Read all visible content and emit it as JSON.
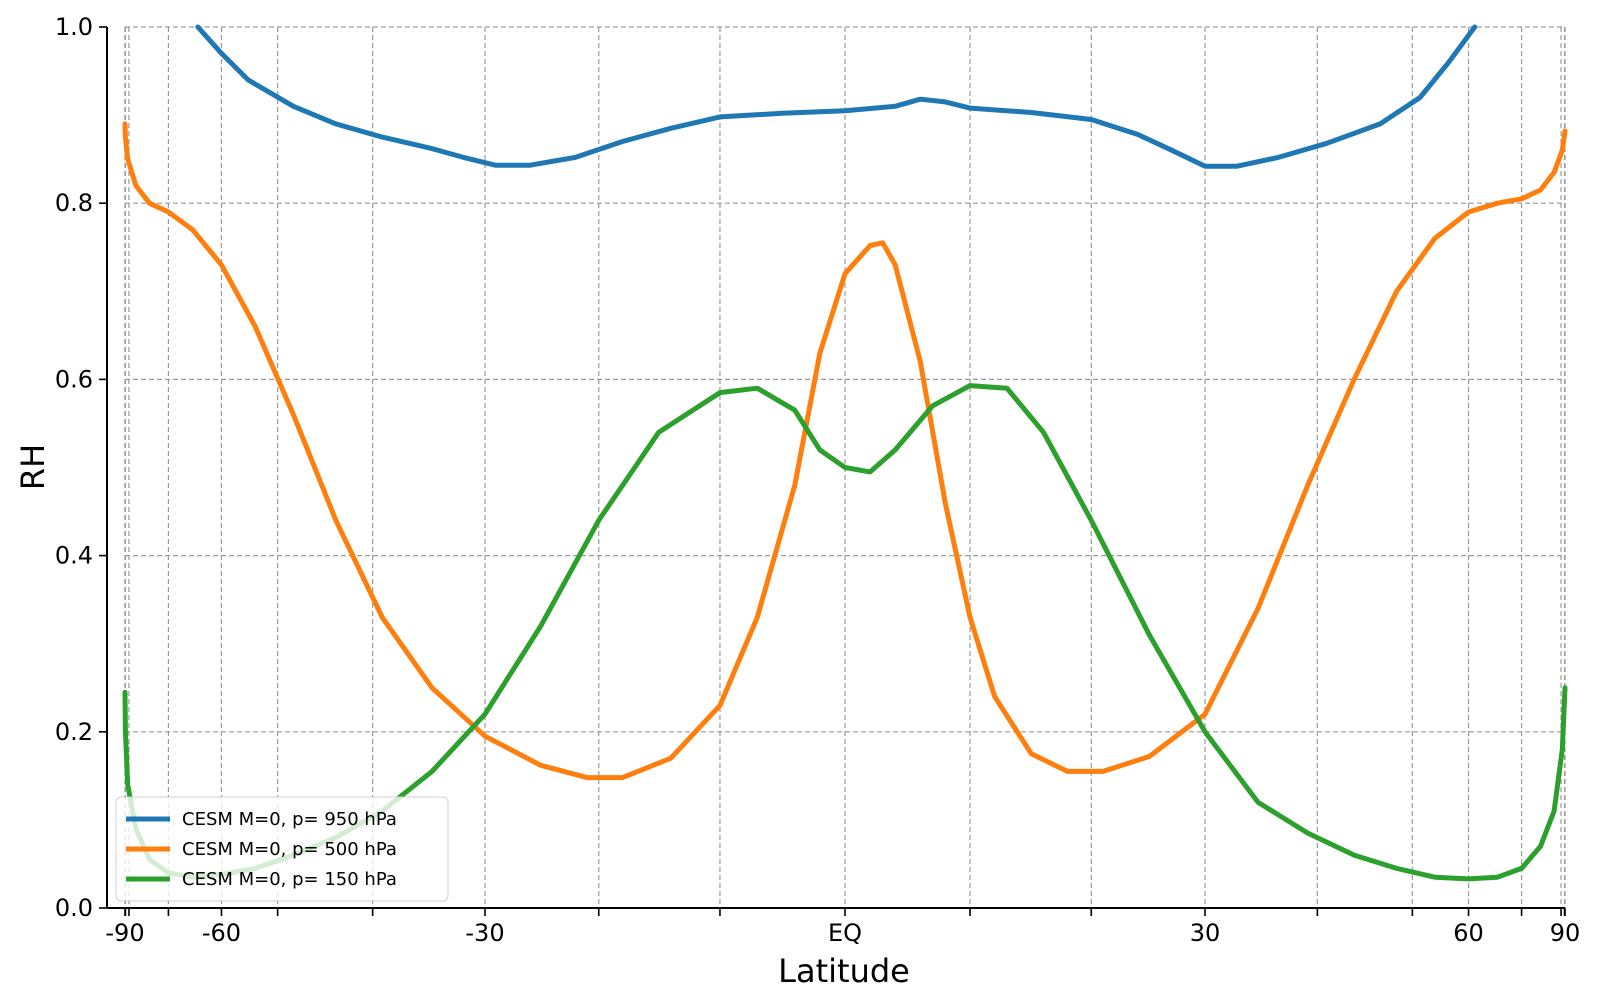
{
  "chart_data": {
    "type": "line",
    "xlabel": "Latitude",
    "ylabel": "RH",
    "xlim": [
      -90,
      90
    ],
    "ylim": [
      0,
      1.0
    ],
    "grid": true,
    "legend_position": "lower-left",
    "x_major_ticks": [
      {
        "value": -90,
        "label": "-90"
      },
      {
        "value": -60,
        "label": "-60"
      },
      {
        "value": -30,
        "label": "-30"
      },
      {
        "value": 0,
        "label": "EQ"
      },
      {
        "value": 30,
        "label": "30"
      },
      {
        "value": 60,
        "label": "60"
      },
      {
        "value": 90,
        "label": "90"
      }
    ],
    "x_minor_ticks": [
      -88,
      -84,
      -70,
      -52,
      -41,
      -20,
      -10,
      10,
      20,
      41,
      52,
      70,
      84,
      88
    ],
    "y_ticks": [
      {
        "value": 0.0,
        "label": "0.0"
      },
      {
        "value": 0.2,
        "label": "0.2"
      },
      {
        "value": 0.4,
        "label": "0.4"
      },
      {
        "value": 0.6,
        "label": "0.6"
      },
      {
        "value": 0.8,
        "label": "0.8"
      },
      {
        "value": 1.0,
        "label": "1.0"
      }
    ],
    "series": [
      {
        "name": "CESM M=0, p= 950 hPa",
        "color": "#1f77b4",
        "points": [
          [
            -64,
            1.0
          ],
          [
            -60,
            0.97
          ],
          [
            -56,
            0.94
          ],
          [
            -50,
            0.91
          ],
          [
            -45,
            0.89
          ],
          [
            -40,
            0.875
          ],
          [
            -35,
            0.862
          ],
          [
            -32,
            0.852
          ],
          [
            -29,
            0.843
          ],
          [
            -26,
            0.843
          ],
          [
            -22,
            0.852
          ],
          [
            -18,
            0.87
          ],
          [
            -14,
            0.885
          ],
          [
            -10,
            0.898
          ],
          [
            -5,
            0.902
          ],
          [
            0,
            0.905
          ],
          [
            4,
            0.91
          ],
          [
            6,
            0.918
          ],
          [
            8,
            0.915
          ],
          [
            10,
            0.908
          ],
          [
            15,
            0.903
          ],
          [
            20,
            0.895
          ],
          [
            24,
            0.878
          ],
          [
            27,
            0.86
          ],
          [
            30,
            0.842
          ],
          [
            33,
            0.842
          ],
          [
            37,
            0.852
          ],
          [
            42,
            0.868
          ],
          [
            48,
            0.89
          ],
          [
            53,
            0.92
          ],
          [
            57,
            0.96
          ],
          [
            61,
            1.0
          ]
        ]
      },
      {
        "name": "CESM M=0, p= 500 hPa",
        "color": "#ff7f0e",
        "points": [
          [
            -90,
            0.89
          ],
          [
            -88,
            0.875
          ],
          [
            -85,
            0.85
          ],
          [
            -80,
            0.82
          ],
          [
            -75,
            0.8
          ],
          [
            -70,
            0.79
          ],
          [
            -65,
            0.77
          ],
          [
            -60,
            0.73
          ],
          [
            -55,
            0.66
          ],
          [
            -50,
            0.56
          ],
          [
            -45,
            0.44
          ],
          [
            -40,
            0.33
          ],
          [
            -35,
            0.25
          ],
          [
            -30,
            0.195
          ],
          [
            -25,
            0.162
          ],
          [
            -21,
            0.148
          ],
          [
            -18,
            0.148
          ],
          [
            -14,
            0.17
          ],
          [
            -10,
            0.23
          ],
          [
            -7,
            0.33
          ],
          [
            -4,
            0.48
          ],
          [
            -2,
            0.63
          ],
          [
            0,
            0.72
          ],
          [
            2,
            0.752
          ],
          [
            3,
            0.755
          ],
          [
            4,
            0.73
          ],
          [
            6,
            0.62
          ],
          [
            8,
            0.46
          ],
          [
            10,
            0.33
          ],
          [
            12,
            0.24
          ],
          [
            15,
            0.175
          ],
          [
            18,
            0.155
          ],
          [
            21,
            0.155
          ],
          [
            25,
            0.172
          ],
          [
            30,
            0.22
          ],
          [
            35,
            0.34
          ],
          [
            40,
            0.48
          ],
          [
            45,
            0.6
          ],
          [
            50,
            0.7
          ],
          [
            55,
            0.76
          ],
          [
            60,
            0.79
          ],
          [
            65,
            0.8
          ],
          [
            70,
            0.805
          ],
          [
            75,
            0.815
          ],
          [
            80,
            0.835
          ],
          [
            85,
            0.86
          ],
          [
            90,
            0.882
          ]
        ]
      },
      {
        "name": "CESM M=0, p= 150 hPa",
        "color": "#2ca02c",
        "points": [
          [
            -90,
            0.245
          ],
          [
            -88,
            0.2
          ],
          [
            -85,
            0.14
          ],
          [
            -80,
            0.09
          ],
          [
            -75,
            0.055
          ],
          [
            -70,
            0.04
          ],
          [
            -65,
            0.035
          ],
          [
            -60,
            0.038
          ],
          [
            -55,
            0.045
          ],
          [
            -50,
            0.06
          ],
          [
            -45,
            0.08
          ],
          [
            -40,
            0.11
          ],
          [
            -35,
            0.155
          ],
          [
            -30,
            0.22
          ],
          [
            -25,
            0.32
          ],
          [
            -20,
            0.44
          ],
          [
            -15,
            0.54
          ],
          [
            -10,
            0.585
          ],
          [
            -7,
            0.59
          ],
          [
            -4,
            0.565
          ],
          [
            -2,
            0.52
          ],
          [
            0,
            0.5
          ],
          [
            2,
            0.495
          ],
          [
            4,
            0.52
          ],
          [
            7,
            0.57
          ],
          [
            10,
            0.593
          ],
          [
            13,
            0.59
          ],
          [
            16,
            0.54
          ],
          [
            20,
            0.44
          ],
          [
            25,
            0.31
          ],
          [
            30,
            0.2
          ],
          [
            35,
            0.12
          ],
          [
            40,
            0.085
          ],
          [
            45,
            0.06
          ],
          [
            50,
            0.045
          ],
          [
            55,
            0.035
          ],
          [
            60,
            0.033
          ],
          [
            65,
            0.035
          ],
          [
            70,
            0.045
          ],
          [
            75,
            0.07
          ],
          [
            80,
            0.11
          ],
          [
            85,
            0.18
          ],
          [
            90,
            0.25
          ]
        ]
      }
    ]
  }
}
